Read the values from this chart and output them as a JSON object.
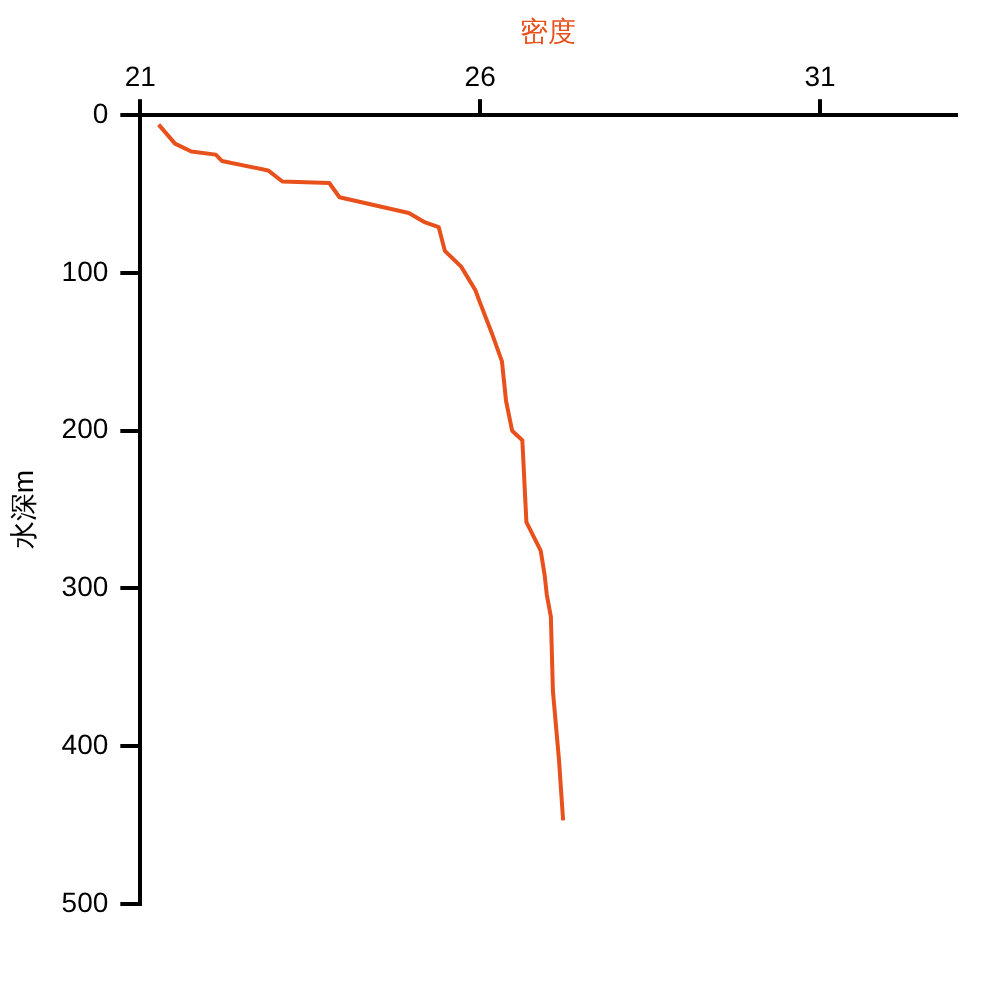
{
  "chart_data": {
    "type": "line",
    "xlabel": "密度",
    "ylabel": "水深m",
    "x": [
      21.27,
      21.51,
      21.75,
      22.11,
      22.2,
      22.88,
      23.09,
      23.78,
      23.93,
      24.95,
      25.19,
      25.39,
      25.48,
      25.72,
      25.93,
      25.99,
      26.17,
      26.32,
      26.38,
      26.47,
      26.62,
      26.68,
      26.89,
      26.95,
      26.98,
      27.04,
      27.07,
      27.16,
      27.22
    ],
    "series": [
      {
        "color": "#e8501c",
        "values": [
          6,
          18,
          23,
          25,
          29,
          35,
          42,
          43,
          52,
          62,
          68,
          71,
          86,
          96,
          111,
          118,
          138,
          156,
          181,
          200,
          206,
          258,
          276,
          292,
          304,
          318,
          365,
          409,
          447
        ]
      }
    ],
    "xlim": [
      21,
      33
    ],
    "xticks": [
      21,
      26,
      31
    ],
    "ylim": [
      500,
      0
    ],
    "yticks": [
      0,
      100,
      200,
      300,
      400,
      500
    ],
    "grid": false
  }
}
